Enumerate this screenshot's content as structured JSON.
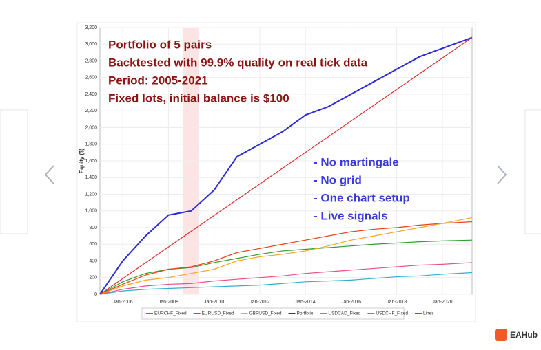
{
  "chart_data": {
    "type": "line",
    "annotations": [
      "Portfolio of 5 pairs",
      "Backtested with 99.9% quality on real tick data",
      "Period: 2005-2021",
      "Fixed lots, initial balance is $100"
    ],
    "notes": [
      "- No martingale",
      "- No grid",
      "- One chart setup",
      "- Live signals"
    ],
    "y_label": "Equity ($)",
    "x": [
      2005,
      2006,
      2007,
      2008,
      2009,
      2010,
      2011,
      2012,
      2013,
      2014,
      2015,
      2016,
      2017,
      2018,
      2019,
      2020,
      2021.3
    ],
    "xlim": [
      2005,
      2021.3
    ],
    "xticks": [
      {
        "value": 2006,
        "label": "Jan-2006"
      },
      {
        "value": 2008,
        "label": "Jan-2008"
      },
      {
        "value": 2010,
        "label": "Jan-2010"
      },
      {
        "value": 2012,
        "label": "Jan-2012"
      },
      {
        "value": 2014,
        "label": "Jan-2014"
      },
      {
        "value": 2016,
        "label": "Jan-2016"
      },
      {
        "value": 2018,
        "label": "Jan-2018"
      },
      {
        "value": 2020,
        "label": "Jan-2020"
      }
    ],
    "ylim": [
      0,
      3200
    ],
    "yticks": [
      0,
      200,
      400,
      600,
      800,
      {
        "value": 1000,
        "label": "1,000"
      },
      {
        "value": 1200,
        "label": "1,200"
      },
      {
        "value": 1400,
        "label": "1,400"
      },
      {
        "value": 1600,
        "label": "1,600"
      },
      {
        "value": 1800,
        "label": "1,800"
      },
      {
        "value": 2000,
        "label": "2,000"
      },
      {
        "value": 2200,
        "label": "2,200"
      },
      {
        "value": 2400,
        "label": "2,400"
      },
      {
        "value": 2600,
        "label": "2,600"
      },
      {
        "value": 2800,
        "label": "2,800"
      },
      {
        "value": 3000,
        "label": "3,000"
      },
      {
        "value": 3200,
        "label": "3,200"
      }
    ],
    "grid": true,
    "series": [
      {
        "name": "EURCHF_Fixed",
        "color": "#2ca02c",
        "values": [
          0,
          150,
          250,
          300,
          320,
          380,
          430,
          480,
          520,
          540,
          560,
          580,
          600,
          615,
          630,
          640,
          650
        ]
      },
      {
        "name": "EURUSD_Fixed",
        "color": "#e8401c",
        "values": [
          0,
          120,
          230,
          300,
          330,
          400,
          500,
          550,
          600,
          650,
          700,
          750,
          780,
          800,
          830,
          850,
          870
        ]
      },
      {
        "name": "GBPUSD_Fixed",
        "color": "#f5a623",
        "values": [
          0,
          100,
          170,
          200,
          250,
          300,
          400,
          450,
          480,
          520,
          580,
          650,
          700,
          750,
          800,
          850,
          920
        ]
      },
      {
        "name": "Portfolio",
        "color": "#2a2adf",
        "values": [
          0,
          400,
          700,
          950,
          1000,
          1250,
          1650,
          1800,
          1950,
          2150,
          2250,
          2400,
          2550,
          2700,
          2850,
          2950,
          3080
        ]
      },
      {
        "name": "USDCAD_Fixed",
        "color": "#30b0d0",
        "values": [
          0,
          40,
          60,
          70,
          80,
          90,
          100,
          110,
          130,
          150,
          160,
          170,
          190,
          210,
          220,
          240,
          260
        ]
      },
      {
        "name": "USDCHF_Fixed",
        "color": "#e8508a",
        "values": [
          0,
          60,
          100,
          120,
          130,
          160,
          180,
          200,
          220,
          250,
          270,
          290,
          310,
          330,
          350,
          360,
          380
        ]
      },
      {
        "name": "Lines",
        "color": "#e03030",
        "values": [
          0,
          189,
          378,
          567,
          756,
          945,
          1134,
          1323,
          1512,
          1701,
          1890,
          2079,
          2268,
          2457,
          2646,
          2835,
          3080
        ]
      }
    ]
  },
  "brand": "EAHub"
}
